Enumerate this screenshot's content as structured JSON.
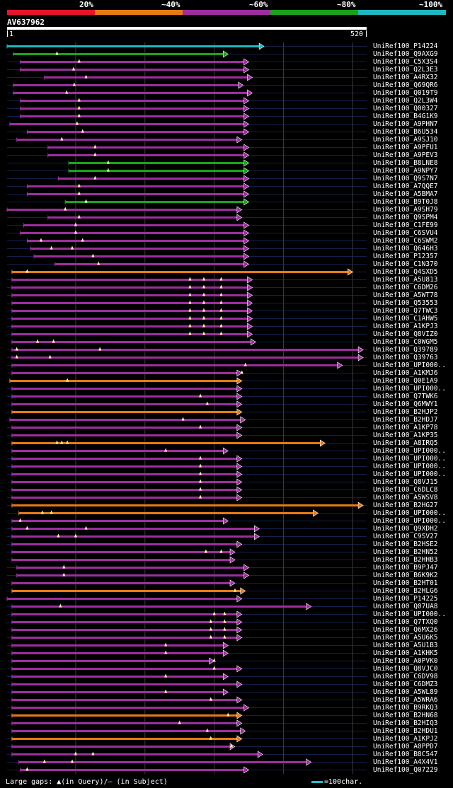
{
  "header": {
    "legend": [
      {
        "label": "",
        "color": "#e8132c"
      },
      {
        "label": "20%",
        "color": "#e87a12"
      },
      {
        "label": "~40%",
        "color": "#9e2ea0"
      },
      {
        "label": "~60%",
        "color": "#1aa31a"
      },
      {
        "label": "~80%",
        "color": "#1fb8c0"
      },
      {
        "label": "~100%",
        "color": ""
      }
    ],
    "query_name": "AV637962",
    "query_start": "1",
    "query_end": "520"
  },
  "footer": {
    "gaps_text": "Large gaps: ▲(in Query)/– (in Subject)",
    "scale_text": "=100char."
  },
  "chart_data": {
    "type": "alignment",
    "query_length": 520,
    "gridlines": [
      100,
      200,
      300,
      400,
      500
    ],
    "color_classes": {
      "green": "#1aa31a",
      "magenta": "#9e2ea0",
      "orange": "#e87a12",
      "cyan": "#1fb8c0"
    },
    "hits": [
      {
        "id": "UniRef100_P14224",
        "start": 1,
        "end": 372,
        "color": "cyan",
        "triangles": []
      },
      {
        "id": "UniRef100_Q9AXG9",
        "start": 10,
        "end": 320,
        "color": "green",
        "triangles": [
          73
        ]
      },
      {
        "id": "UniRef100_C5X3S4",
        "start": 20,
        "end": 350,
        "color": "magenta",
        "triangles": [
          105
        ]
      },
      {
        "id": "UniRef100_Q2L3E3",
        "start": 20,
        "end": 350,
        "color": "magenta",
        "triangles": [
          97
        ]
      },
      {
        "id": "UniRef100_A4RX32",
        "start": 55,
        "end": 355,
        "color": "magenta",
        "triangles": [
          115
        ]
      },
      {
        "id": "UniRef100_Q69QR6",
        "start": 10,
        "end": 342,
        "color": "magenta",
        "triangles": [
          98
        ]
      },
      {
        "id": "UniRef100_Q019T9",
        "start": 10,
        "end": 355,
        "color": "magenta",
        "triangles": [
          87
        ]
      },
      {
        "id": "UniRef100_Q2L3W4",
        "start": 20,
        "end": 350,
        "color": "magenta",
        "triangles": [
          105
        ]
      },
      {
        "id": "UniRef100_Q00327",
        "start": 20,
        "end": 350,
        "color": "magenta",
        "triangles": [
          105
        ]
      },
      {
        "id": "UniRef100_B4G1K9",
        "start": 20,
        "end": 350,
        "color": "magenta",
        "triangles": [
          105
        ]
      },
      {
        "id": "UniRef100_A9PHN7",
        "start": 5,
        "end": 350,
        "color": "magenta",
        "triangles": [
          102
        ]
      },
      {
        "id": "UniRef100_B6U534",
        "start": 30,
        "end": 350,
        "color": "magenta",
        "triangles": [
          110
        ]
      },
      {
        "id": "UniRef100_A9SJ10",
        "start": 15,
        "end": 340,
        "color": "magenta",
        "triangles": [
          80
        ]
      },
      {
        "id": "UniRef100_A9PFU1",
        "start": 60,
        "end": 350,
        "color": "magenta",
        "triangles": [
          128
        ]
      },
      {
        "id": "UniRef100_A9PEV3",
        "start": 60,
        "end": 350,
        "color": "magenta",
        "triangles": [
          128
        ]
      },
      {
        "id": "UniRef100_B8LNE8",
        "start": 90,
        "end": 350,
        "color": "green",
        "triangles": [
          147
        ]
      },
      {
        "id": "UniRef100_A9NPY7",
        "start": 90,
        "end": 350,
        "color": "green",
        "triangles": [
          147
        ]
      },
      {
        "id": "UniRef100_Q9S7N7",
        "start": 75,
        "end": 350,
        "color": "magenta",
        "triangles": [
          128
        ]
      },
      {
        "id": "UniRef100_A7QQE7",
        "start": 30,
        "end": 350,
        "color": "magenta",
        "triangles": [
          105
        ]
      },
      {
        "id": "UniRef100_A5BMA7",
        "start": 30,
        "end": 350,
        "color": "magenta",
        "triangles": [
          105
        ]
      },
      {
        "id": "UniRef100_B9T0J8",
        "start": 85,
        "end": 350,
        "color": "green",
        "triangles": [
          115
        ]
      },
      {
        "id": "UniRef100_A9SH79",
        "start": 1,
        "end": 340,
        "color": "magenta",
        "triangles": [
          85
        ]
      },
      {
        "id": "UniRef100_Q9SPM4",
        "start": 60,
        "end": 340,
        "color": "magenta",
        "triangles": [
          105
        ]
      },
      {
        "id": "UniRef100_C1FE99",
        "start": 25,
        "end": 350,
        "color": "magenta",
        "triangles": [
          100
        ]
      },
      {
        "id": "UniRef100_C6SVU4",
        "start": 20,
        "end": 350,
        "color": "magenta",
        "triangles": [
          100
        ]
      },
      {
        "id": "UniRef100_C6SWM2",
        "start": 30,
        "end": 350,
        "color": "magenta",
        "triangles": [
          50,
          110
        ]
      },
      {
        "id": "UniRef100_Q646H3",
        "start": 35,
        "end": 350,
        "color": "magenta",
        "triangles": [
          65,
          95
        ]
      },
      {
        "id": "UniRef100_P12357",
        "start": 40,
        "end": 350,
        "color": "magenta",
        "triangles": [
          125
        ]
      },
      {
        "id": "UniRef100_C1N370",
        "start": 70,
        "end": 350,
        "color": "magenta",
        "triangles": [
          133
        ]
      },
      {
        "id": "UniRef100_Q4SXD5",
        "start": 8,
        "end": 500,
        "color": "orange",
        "triangles": [
          30
        ]
      },
      {
        "id": "UniRef100_A5U813",
        "start": 8,
        "end": 355,
        "color": "magenta",
        "triangles": [
          265,
          285,
          310
        ]
      },
      {
        "id": "UniRef100_C6DM26",
        "start": 8,
        "end": 355,
        "color": "magenta",
        "triangles": [
          265,
          285,
          310
        ]
      },
      {
        "id": "UniRef100_A5WT78",
        "start": 8,
        "end": 355,
        "color": "magenta",
        "triangles": [
          265,
          285,
          310
        ]
      },
      {
        "id": "UniRef100_Q53553",
        "start": 8,
        "end": 355,
        "color": "magenta",
        "triangles": [
          265,
          285,
          310
        ]
      },
      {
        "id": "UniRef100_Q7TWC3",
        "start": 8,
        "end": 355,
        "color": "magenta",
        "triangles": [
          265,
          285,
          310
        ]
      },
      {
        "id": "UniRef100_C1AHW5",
        "start": 8,
        "end": 355,
        "color": "magenta",
        "triangles": [
          265,
          285,
          310
        ]
      },
      {
        "id": "UniRef100_A1KPJ3",
        "start": 8,
        "end": 355,
        "color": "magenta",
        "triangles": [
          265,
          285,
          310
        ]
      },
      {
        "id": "UniRef100_Q8VIZ0",
        "start": 8,
        "end": 355,
        "color": "magenta",
        "triangles": [
          265,
          285,
          310
        ]
      },
      {
        "id": "UniRef100_C0WGM5",
        "start": 8,
        "end": 360,
        "color": "magenta",
        "triangles": [
          45,
          68
        ]
      },
      {
        "id": "UniRef100_Q39789",
        "start": 8,
        "end": 515,
        "color": "magenta",
        "triangles": [
          15,
          135
        ]
      },
      {
        "id": "UniRef100_Q39763",
        "start": 8,
        "end": 515,
        "color": "magenta",
        "triangles": [
          15,
          63
        ]
      },
      {
        "id": "UniRef100_UPI000..",
        "start": 8,
        "end": 485,
        "color": "magenta",
        "triangles": [
          345
        ]
      },
      {
        "id": "UniRef100_A1KMJ6",
        "start": 8,
        "end": 340,
        "color": "magenta",
        "triangles": [
          340
        ]
      },
      {
        "id": "UniRef100_Q0E1A9",
        "start": 5,
        "end": 340,
        "color": "orange",
        "triangles": [
          88
        ]
      },
      {
        "id": "UniRef100_UPI000..",
        "start": 8,
        "end": 340,
        "color": "magenta",
        "triangles": []
      },
      {
        "id": "UniRef100_Q7TWK6",
        "start": 8,
        "end": 340,
        "color": "magenta",
        "triangles": [
          280
        ]
      },
      {
        "id": "UniRef100_Q6MWY1",
        "start": 8,
        "end": 340,
        "color": "magenta",
        "triangles": [
          290
        ]
      },
      {
        "id": "UniRef100_B2HJP2",
        "start": 8,
        "end": 340,
        "color": "orange",
        "triangles": []
      },
      {
        "id": "UniRef100_B2HDJ7",
        "start": 5,
        "end": 345,
        "color": "magenta",
        "triangles": [
          255
        ]
      },
      {
        "id": "UniRef100_A1KP78",
        "start": 8,
        "end": 340,
        "color": "magenta",
        "triangles": [
          280
        ]
      },
      {
        "id": "UniRef100_A1KP35",
        "start": 8,
        "end": 340,
        "color": "magenta",
        "triangles": []
      },
      {
        "id": "UniRef100_A8IRQ5",
        "start": 8,
        "end": 460,
        "color": "orange",
        "triangles": [
          73,
          80,
          88
        ]
      },
      {
        "id": "UniRef100_UPI000..",
        "start": 8,
        "end": 320,
        "color": "magenta",
        "triangles": [
          230
        ]
      },
      {
        "id": "UniRef100_UPI000..",
        "start": 8,
        "end": 340,
        "color": "magenta",
        "triangles": [
          280
        ]
      },
      {
        "id": "UniRef100_UPI000..",
        "start": 8,
        "end": 340,
        "color": "magenta",
        "triangles": [
          280
        ]
      },
      {
        "id": "UniRef100_UPI000..",
        "start": 8,
        "end": 340,
        "color": "magenta",
        "triangles": [
          280
        ]
      },
      {
        "id": "UniRef100_Q8VJ15",
        "start": 8,
        "end": 340,
        "color": "magenta",
        "triangles": [
          280
        ]
      },
      {
        "id": "UniRef100_C6DLC8",
        "start": 8,
        "end": 340,
        "color": "magenta",
        "triangles": [
          280
        ]
      },
      {
        "id": "UniRef100_A5WSV8",
        "start": 8,
        "end": 340,
        "color": "magenta",
        "triangles": [
          280
        ]
      },
      {
        "id": "UniRef100_B2HG27",
        "start": 8,
        "end": 515,
        "color": "orange",
        "triangles": []
      },
      {
        "id": "UniRef100_UPI000..",
        "start": 18,
        "end": 450,
        "color": "orange",
        "triangles": [
          52,
          65
        ]
      },
      {
        "id": "UniRef100_UPI000..",
        "start": 8,
        "end": 320,
        "color": "magenta",
        "triangles": [
          20
        ]
      },
      {
        "id": "UniRef100_Q9XDH2",
        "start": 8,
        "end": 365,
        "color": "magenta",
        "triangles": [
          30,
          115
        ]
      },
      {
        "id": "UniRef100_C9SV27",
        "start": 8,
        "end": 365,
        "color": "magenta",
        "triangles": [
          75,
          100
        ]
      },
      {
        "id": "UniRef100_B2HSE2",
        "start": 8,
        "end": 340,
        "color": "magenta",
        "triangles": []
      },
      {
        "id": "UniRef100_B2HN52",
        "start": 8,
        "end": 330,
        "color": "magenta",
        "triangles": [
          288,
          310
        ]
      },
      {
        "id": "UniRef100_B2HHB3",
        "start": 8,
        "end": 330,
        "color": "magenta",
        "triangles": []
      },
      {
        "id": "UniRef100_B9PJ47",
        "start": 15,
        "end": 350,
        "color": "magenta",
        "triangles": [
          83
        ]
      },
      {
        "id": "UniRef100_B6K9K2",
        "start": 15,
        "end": 350,
        "color": "magenta",
        "triangles": [
          83
        ]
      },
      {
        "id": "UniRef100_B2HT01",
        "start": 8,
        "end": 330,
        "color": "magenta",
        "triangles": []
      },
      {
        "id": "UniRef100_B2HLG6",
        "start": 8,
        "end": 345,
        "color": "orange",
        "triangles": [
          330
        ]
      },
      {
        "id": "UniRef100_P14225",
        "start": 1,
        "end": 340,
        "color": "magenta",
        "triangles": []
      },
      {
        "id": "UniRef100_Q07UA8",
        "start": 8,
        "end": 440,
        "color": "magenta",
        "triangles": [
          78
        ]
      },
      {
        "id": "UniRef100_UPI000..",
        "start": 8,
        "end": 340,
        "color": "magenta",
        "triangles": [
          300,
          315
        ]
      },
      {
        "id": "UniRef100_Q7TXQ0",
        "start": 8,
        "end": 340,
        "color": "magenta",
        "triangles": [
          295,
          315
        ]
      },
      {
        "id": "UniRef100_Q6MX26",
        "start": 8,
        "end": 340,
        "color": "magenta",
        "triangles": [
          295,
          315
        ]
      },
      {
        "id": "UniRef100_A5U6K5",
        "start": 8,
        "end": 340,
        "color": "magenta",
        "triangles": [
          295,
          315
        ]
      },
      {
        "id": "UniRef100_A5U1B3",
        "start": 8,
        "end": 320,
        "color": "magenta",
        "triangles": [
          230
        ]
      },
      {
        "id": "UniRef100_A1KHK5",
        "start": 8,
        "end": 320,
        "color": "magenta",
        "triangles": [
          230
        ]
      },
      {
        "id": "UniRef100_A0PVK0",
        "start": 8,
        "end": 300,
        "color": "magenta",
        "triangles": [
          300
        ]
      },
      {
        "id": "UniRef100_Q8VJC0",
        "start": 8,
        "end": 340,
        "color": "magenta",
        "triangles": [
          300
        ]
      },
      {
        "id": "UniRef100_C6DV98",
        "start": 8,
        "end": 320,
        "color": "magenta",
        "triangles": [
          230
        ]
      },
      {
        "id": "UniRef100_C6DMZ3",
        "start": 8,
        "end": 340,
        "color": "magenta",
        "triangles": []
      },
      {
        "id": "UniRef100_A5WL89",
        "start": 8,
        "end": 320,
        "color": "magenta",
        "triangles": [
          230
        ]
      },
      {
        "id": "UniRef100_A5WRA6",
        "start": 8,
        "end": 340,
        "color": "magenta",
        "triangles": [
          295
        ]
      },
      {
        "id": "UniRef100_B9RKQ3",
        "start": 8,
        "end": 350,
        "color": "magenta",
        "triangles": []
      },
      {
        "id": "UniRef100_B2HN68",
        "start": 8,
        "end": 340,
        "color": "orange",
        "triangles": [
          320
        ]
      },
      {
        "id": "UniRef100_B2HIQ3",
        "start": 8,
        "end": 340,
        "color": "magenta",
        "triangles": [
          250
        ]
      },
      {
        "id": "UniRef100_B2HDU1",
        "start": 8,
        "end": 345,
        "color": "magenta",
        "triangles": [
          290
        ]
      },
      {
        "id": "UniRef100_A1KPJ2",
        "start": 8,
        "end": 340,
        "color": "orange",
        "triangles": [
          295
        ]
      },
      {
        "id": "UniRef100_A0PPD7",
        "start": 8,
        "end": 330,
        "color": "magenta",
        "triangles": [
          325
        ]
      },
      {
        "id": "UniRef100_B8C547",
        "start": 8,
        "end": 370,
        "color": "magenta",
        "triangles": [
          100,
          125
        ]
      },
      {
        "id": "UniRef100_A4X4V1",
        "start": 18,
        "end": 440,
        "color": "magenta",
        "triangles": [
          55,
          95
        ]
      },
      {
        "id": "UniRef100_Q07229",
        "start": 20,
        "end": 350,
        "color": "magenta",
        "triangles": [
          30
        ]
      }
    ]
  }
}
